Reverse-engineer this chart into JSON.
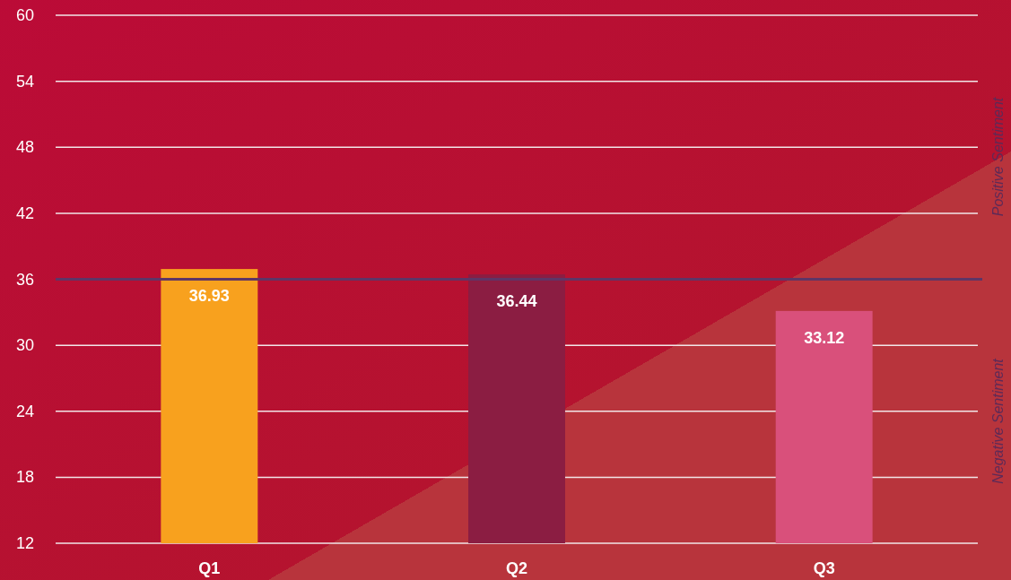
{
  "chart_data": {
    "type": "bar",
    "categories": [
      "Q1",
      "Q2",
      "Q3"
    ],
    "values": [
      36.93,
      36.44,
      33.12
    ],
    "colors": [
      "#f8a11e",
      "#8b1d42",
      "#d9507b"
    ],
    "ylim": [
      12,
      60
    ],
    "yticks": [
      12,
      18,
      24,
      30,
      36,
      42,
      48,
      54,
      60
    ],
    "grid": "y",
    "data_labels": true,
    "ref_lines": [
      {
        "axis": "y",
        "value": 36,
        "color": "#5e3566"
      }
    ],
    "annotations": [
      "Positive Sentiment",
      "Negative Sentiment"
    ]
  }
}
